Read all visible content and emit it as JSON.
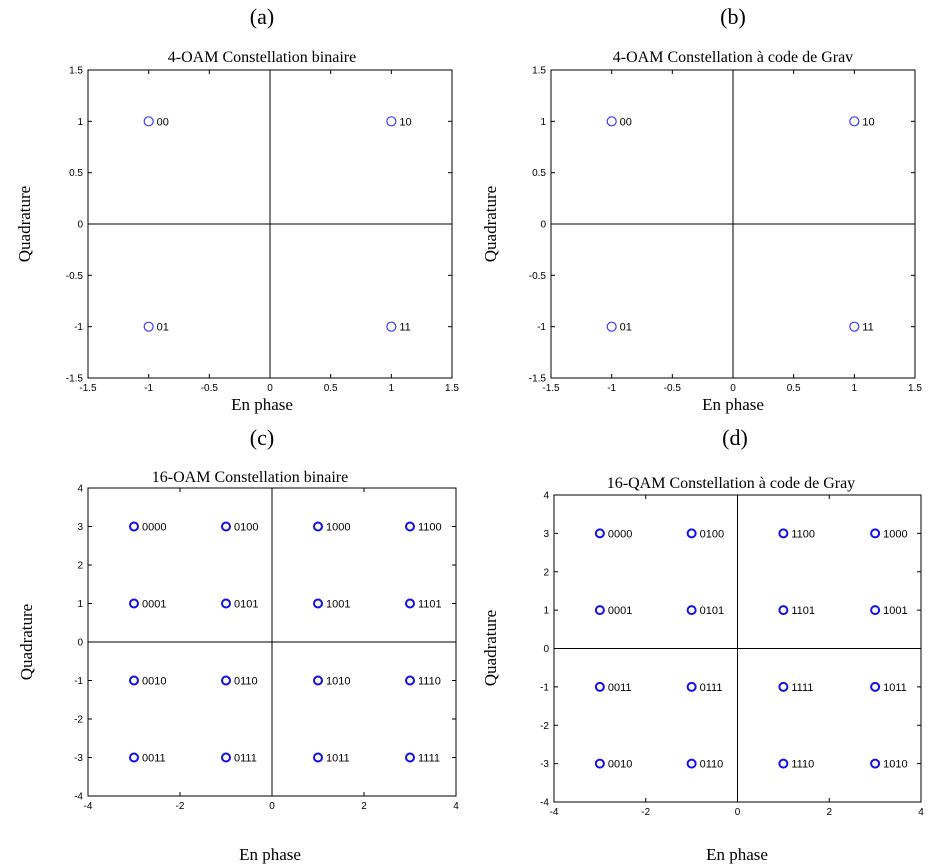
{
  "chart_data": [
    {
      "type": "scatter",
      "panel_letter": "(a)",
      "title": "4-OAM Constellation binaire",
      "xlabel": "En phase",
      "ylabel": "Quadrature",
      "xlim": [
        -1.5,
        1.5
      ],
      "ylim": [
        -1.5,
        1.5
      ],
      "xticks": [
        -1.5,
        -1,
        -0.5,
        0,
        0.5,
        1,
        1.5
      ],
      "yticks": [
        -1.5,
        -1,
        -0.5,
        0,
        0.5,
        1,
        1.5
      ],
      "marker_color": "#3a3aff",
      "points": [
        {
          "x": -1,
          "y": 1,
          "label": "00"
        },
        {
          "x": 1,
          "y": 1,
          "label": "10"
        },
        {
          "x": -1,
          "y": -1,
          "label": "01"
        },
        {
          "x": 1,
          "y": -1,
          "label": "11"
        }
      ]
    },
    {
      "type": "scatter",
      "panel_letter": "(b)",
      "title": "4-OAM Constellation à code de Grav",
      "xlabel": "En phase",
      "ylabel": "Quadrature",
      "xlim": [
        -1.5,
        1.5
      ],
      "ylim": [
        -1.5,
        1.5
      ],
      "xticks": [
        -1.5,
        -1,
        -0.5,
        0,
        0.5,
        1,
        1.5
      ],
      "yticks": [
        -1.5,
        -1,
        -0.5,
        0,
        0.5,
        1,
        1.5
      ],
      "marker_color": "#3a3aff",
      "points": [
        {
          "x": -1,
          "y": 1,
          "label": "00"
        },
        {
          "x": 1,
          "y": 1,
          "label": "10"
        },
        {
          "x": -1,
          "y": -1,
          "label": "01"
        },
        {
          "x": 1,
          "y": -1,
          "label": "11"
        }
      ]
    },
    {
      "type": "scatter",
      "panel_letter": "(c)",
      "title": "16-OAM Constellation binaire",
      "xlabel": "En phase",
      "ylabel": "Quadrature",
      "xlim": [
        -4,
        4
      ],
      "ylim": [
        -4,
        4
      ],
      "xticks": [
        -4,
        -2,
        0,
        2,
        4
      ],
      "yticks": [
        -4,
        -3,
        -2,
        -1,
        0,
        1,
        2,
        3,
        4
      ],
      "marker_color": "#1010ee",
      "points": [
        {
          "x": -3,
          "y": 3,
          "label": "0000"
        },
        {
          "x": -1,
          "y": 3,
          "label": "0100"
        },
        {
          "x": 1,
          "y": 3,
          "label": "1000"
        },
        {
          "x": 3,
          "y": 3,
          "label": "1100"
        },
        {
          "x": -3,
          "y": 1,
          "label": "0001"
        },
        {
          "x": -1,
          "y": 1,
          "label": "0101"
        },
        {
          "x": 1,
          "y": 1,
          "label": "1001"
        },
        {
          "x": 3,
          "y": 1,
          "label": "1101"
        },
        {
          "x": -3,
          "y": -1,
          "label": "0010"
        },
        {
          "x": -1,
          "y": -1,
          "label": "0110"
        },
        {
          "x": 1,
          "y": -1,
          "label": "1010"
        },
        {
          "x": 3,
          "y": -1,
          "label": "1110"
        },
        {
          "x": -3,
          "y": -3,
          "label": "0011"
        },
        {
          "x": -1,
          "y": -3,
          "label": "0111"
        },
        {
          "x": 1,
          "y": -3,
          "label": "1011"
        },
        {
          "x": 3,
          "y": -3,
          "label": "1111"
        }
      ]
    },
    {
      "type": "scatter",
      "panel_letter": "(d)",
      "title": "16-QAM Constellation à code de Gray",
      "xlabel": "En phase",
      "ylabel": "Quadrature",
      "xlim": [
        -4,
        4
      ],
      "ylim": [
        -4,
        4
      ],
      "xticks": [
        -4,
        -2,
        0,
        2,
        4
      ],
      "yticks": [
        -4,
        -3,
        -2,
        -1,
        0,
        1,
        2,
        3,
        4
      ],
      "marker_color": "#1010ee",
      "points": [
        {
          "x": -3,
          "y": 3,
          "label": "0000"
        },
        {
          "x": -1,
          "y": 3,
          "label": "0100"
        },
        {
          "x": 1,
          "y": 3,
          "label": "1100"
        },
        {
          "x": 3,
          "y": 3,
          "label": "1000"
        },
        {
          "x": -3,
          "y": 1,
          "label": "0001"
        },
        {
          "x": -1,
          "y": 1,
          "label": "0101"
        },
        {
          "x": 1,
          "y": 1,
          "label": "1101"
        },
        {
          "x": 3,
          "y": 1,
          "label": "1001"
        },
        {
          "x": -3,
          "y": -1,
          "label": "0011"
        },
        {
          "x": -1,
          "y": -1,
          "label": "0111"
        },
        {
          "x": 1,
          "y": -1,
          "label": "1111"
        },
        {
          "x": 3,
          "y": -1,
          "label": "1011"
        },
        {
          "x": -3,
          "y": -3,
          "label": "0010"
        },
        {
          "x": -1,
          "y": -3,
          "label": "0110"
        },
        {
          "x": 1,
          "y": -3,
          "label": "1110"
        },
        {
          "x": 3,
          "y": -3,
          "label": "1010"
        }
      ]
    }
  ]
}
